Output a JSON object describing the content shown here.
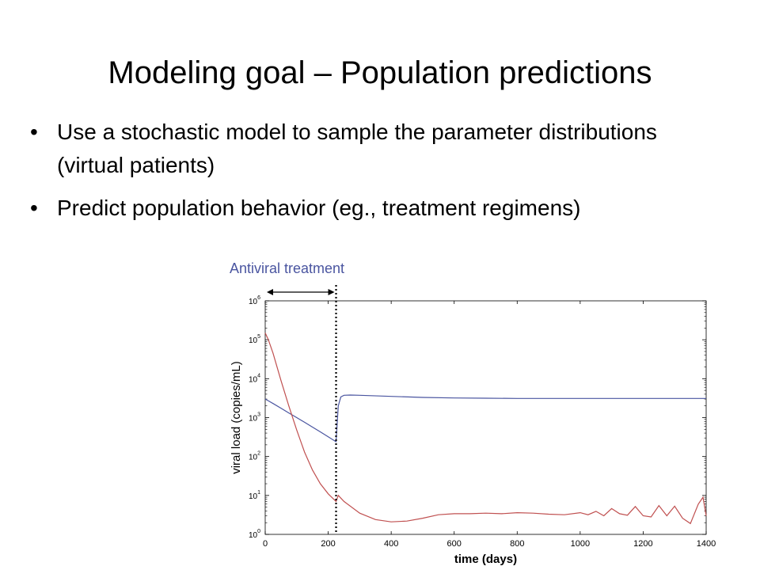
{
  "slide": {
    "title": "Modeling goal – Population predictions",
    "bullets": [
      "Use a stochastic model to sample the parameter distributions (virtual patients)",
      "Predict population behavior  (eg., treatment regimens)"
    ],
    "bullet_symbol": "•"
  },
  "annotation": {
    "label": "Antiviral treatment",
    "treatment_end_day": 225,
    "color": "#4a55a0"
  },
  "chart_data": {
    "type": "line",
    "xlabel": "time (days)",
    "ylabel": "viral load (copies/mL)",
    "xlim": [
      0,
      1400
    ],
    "ylim": [
      1,
      1000000
    ],
    "y_scale": "log",
    "x_ticks": [
      0,
      200,
      400,
      600,
      800,
      1000,
      1200,
      1400
    ],
    "y_ticks": [
      {
        "base": "10",
        "exp": "0",
        "value": 1
      },
      {
        "base": "10",
        "exp": "1",
        "value": 10
      },
      {
        "base": "10",
        "exp": "2",
        "value": 100
      },
      {
        "base": "10",
        "exp": "3",
        "value": 1000
      },
      {
        "base": "10",
        "exp": "4",
        "value": 10000
      },
      {
        "base": "10",
        "exp": "5",
        "value": 100000
      },
      {
        "base": "10",
        "exp": "6",
        "value": 1000000
      }
    ],
    "grid": false,
    "series": [
      {
        "color": "#4a55a0",
        "x": [
          0,
          25,
          50,
          75,
          100,
          125,
          150,
          175,
          200,
          225,
          228,
          232,
          240,
          250,
          270,
          300,
          400,
          500,
          600,
          700,
          800,
          900,
          1000,
          1100,
          1200,
          1300,
          1400
        ],
        "y": [
          3000,
          2300,
          1750,
          1320,
          1000,
          760,
          570,
          430,
          320,
          240,
          600,
          2000,
          3400,
          3750,
          3800,
          3750,
          3500,
          3300,
          3200,
          3150,
          3100,
          3100,
          3100,
          3100,
          3100,
          3100,
          3100
        ]
      },
      {
        "color": "#c05050",
        "x": [
          0,
          10,
          25,
          50,
          75,
          100,
          125,
          150,
          175,
          200,
          225,
          232,
          250,
          300,
          350,
          400,
          450,
          500,
          550,
          600,
          650,
          700,
          750,
          800,
          850,
          900,
          950,
          1000,
          1025,
          1050,
          1075,
          1100,
          1125,
          1150,
          1175,
          1200,
          1225,
          1250,
          1275,
          1300,
          1325,
          1350,
          1375,
          1390,
          1400
        ],
        "y": [
          150000,
          100000,
          45000,
          9000,
          2000,
          480,
          130,
          45,
          20,
          11,
          7,
          10,
          7,
          3.5,
          2.4,
          2.1,
          2.2,
          2.6,
          3.2,
          3.4,
          3.4,
          3.5,
          3.4,
          3.6,
          3.5,
          3.3,
          3.2,
          3.6,
          3.2,
          3.9,
          3.0,
          4.6,
          3.4,
          3.1,
          5.2,
          3.0,
          2.8,
          5.5,
          3.0,
          5.3,
          2.6,
          1.9,
          6.0,
          9.0,
          3.0
        ]
      }
    ]
  }
}
